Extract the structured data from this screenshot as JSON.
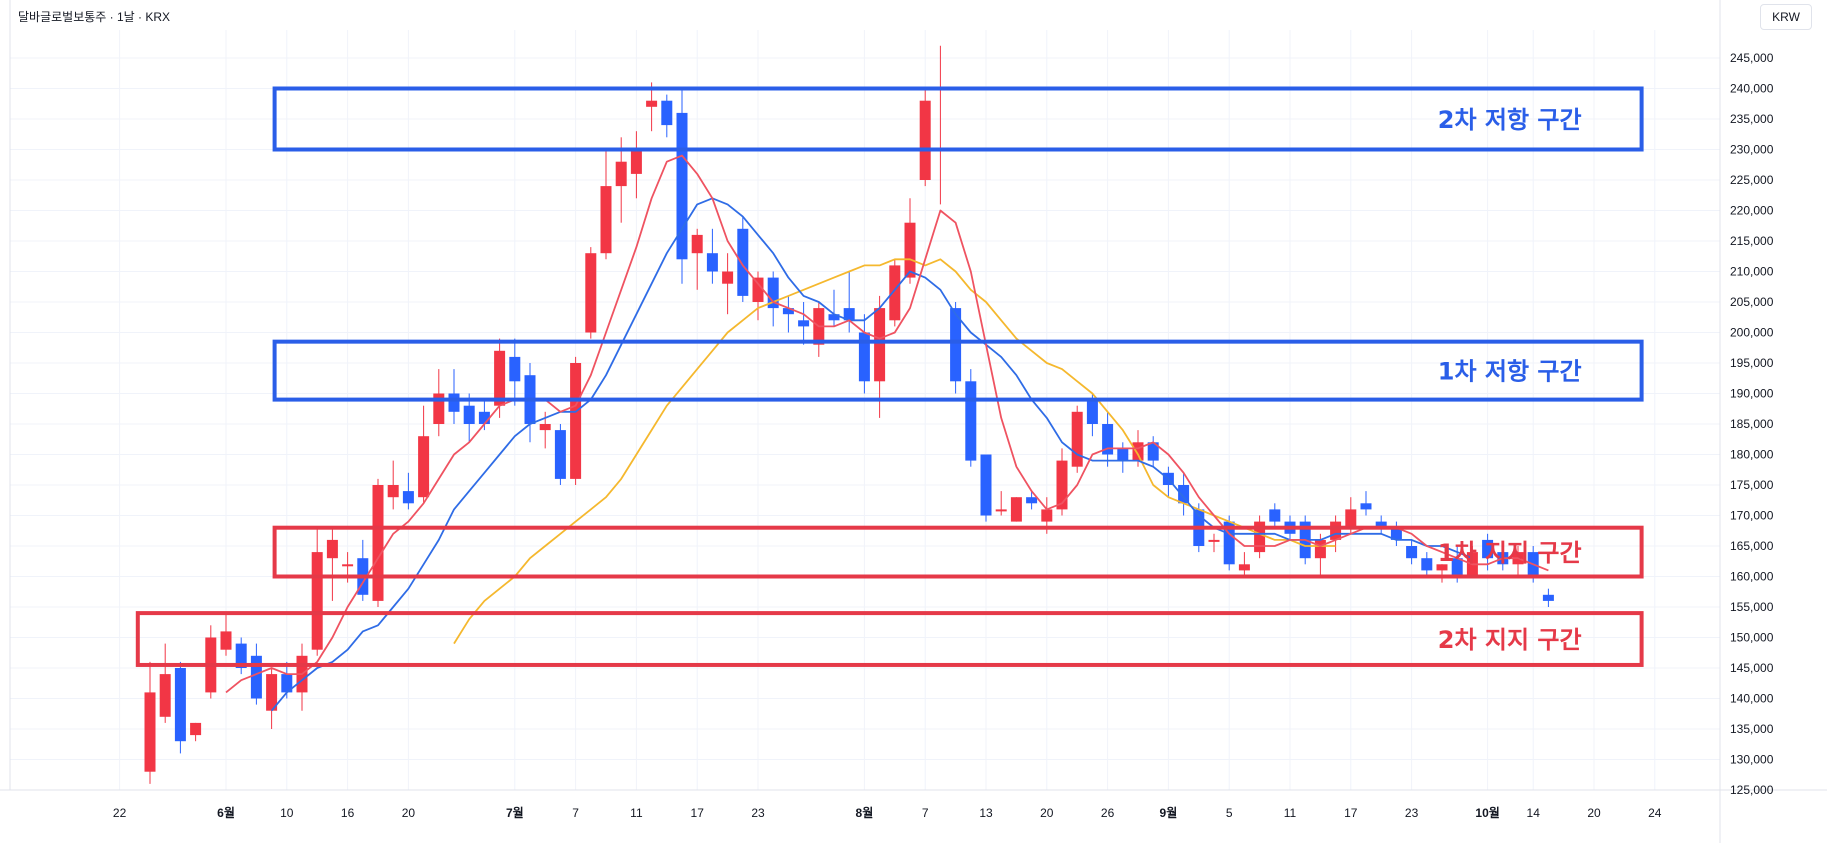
{
  "header": {
    "title": "달바글로벌보통주 · 1날 · KRX",
    "currency": "KRW"
  },
  "colors": {
    "up": "#f23645",
    "down": "#2962ff",
    "ma_short": "#ef5361",
    "ma_mid": "#2f6ce6",
    "ma_long": "#f5b82e",
    "resistance": "#2a5ee8",
    "support": "#e53948"
  },
  "chart_data": {
    "type": "candlestick",
    "title": "",
    "ylim": [
      122000,
      248000
    ],
    "y_ticks": [
      125000,
      130000,
      135000,
      140000,
      145000,
      150000,
      155000,
      160000,
      165000,
      170000,
      175000,
      180000,
      185000,
      190000,
      195000,
      200000,
      205000,
      210000,
      215000,
      220000,
      225000,
      230000,
      235000,
      240000,
      245000
    ],
    "y_tick_labels": [
      "125,000",
      "130,000",
      "135,000",
      "140,000",
      "145,000",
      "150,000",
      "155,000",
      "160,000",
      "165,000",
      "170,000",
      "175,000",
      "180,000",
      "185,000",
      "190,000",
      "195,000",
      "200,000",
      "205,000",
      "210,000",
      "215,000",
      "220,000",
      "225,000",
      "230,000",
      "235,000",
      "240,000",
      "245,000"
    ],
    "x_ticks": [
      {
        "label": "22",
        "index": -2,
        "bold": false
      },
      {
        "label": "6월",
        "index": 5,
        "bold": true
      },
      {
        "label": "10",
        "index": 9,
        "bold": false
      },
      {
        "label": "16",
        "index": 13,
        "bold": false
      },
      {
        "label": "20",
        "index": 17,
        "bold": false
      },
      {
        "label": "7월",
        "index": 24,
        "bold": true
      },
      {
        "label": "7",
        "index": 28,
        "bold": false
      },
      {
        "label": "11",
        "index": 32,
        "bold": false
      },
      {
        "label": "17",
        "index": 36,
        "bold": false
      },
      {
        "label": "23",
        "index": 40,
        "bold": false
      },
      {
        "label": "8월",
        "index": 47,
        "bold": true
      },
      {
        "label": "7",
        "index": 51,
        "bold": false
      },
      {
        "label": "13",
        "index": 55,
        "bold": false
      },
      {
        "label": "20",
        "index": 59,
        "bold": false
      },
      {
        "label": "26",
        "index": 63,
        "bold": false
      },
      {
        "label": "9월",
        "index": 67,
        "bold": true
      },
      {
        "label": "5",
        "index": 71,
        "bold": false
      },
      {
        "label": "11",
        "index": 75,
        "bold": false
      },
      {
        "label": "17",
        "index": 79,
        "bold": false
      },
      {
        "label": "23",
        "index": 83,
        "bold": false
      },
      {
        "label": "10월",
        "index": 88,
        "bold": true
      },
      {
        "label": "14",
        "index": 91,
        "bold": false
      },
      {
        "label": "20",
        "index": 95,
        "bold": false
      },
      {
        "label": "24",
        "index": 99,
        "bold": false
      }
    ],
    "candles": [
      {
        "o": 128000,
        "h": 146000,
        "l": 126000,
        "c": 141000
      },
      {
        "o": 137000,
        "h": 149000,
        "l": 136000,
        "c": 144000
      },
      {
        "o": 145000,
        "h": 146000,
        "l": 131000,
        "c": 133000
      },
      {
        "o": 134000,
        "h": 136000,
        "l": 133000,
        "c": 136000
      },
      {
        "o": 141000,
        "h": 152000,
        "l": 140000,
        "c": 150000
      },
      {
        "o": 148000,
        "h": 154000,
        "l": 147000,
        "c": 151000
      },
      {
        "o": 149000,
        "h": 150000,
        "l": 144000,
        "c": 145000
      },
      {
        "o": 147000,
        "h": 149000,
        "l": 139000,
        "c": 140000
      },
      {
        "o": 138000,
        "h": 145000,
        "l": 135000,
        "c": 144000
      },
      {
        "o": 144000,
        "h": 146000,
        "l": 140000,
        "c": 141000
      },
      {
        "o": 141000,
        "h": 149000,
        "l": 138000,
        "c": 147000
      },
      {
        "o": 148000,
        "h": 168000,
        "l": 147000,
        "c": 164000
      },
      {
        "o": 163000,
        "h": 168000,
        "l": 156000,
        "c": 166000
      },
      {
        "o": 162000,
        "h": 164000,
        "l": 159000,
        "c": 162000
      },
      {
        "o": 163000,
        "h": 166000,
        "l": 156000,
        "c": 157000
      },
      {
        "o": 156000,
        "h": 176000,
        "l": 155000,
        "c": 175000
      },
      {
        "o": 173000,
        "h": 179000,
        "l": 171000,
        "c": 175000
      },
      {
        "o": 174000,
        "h": 177000,
        "l": 171000,
        "c": 172000
      },
      {
        "o": 173000,
        "h": 188000,
        "l": 172000,
        "c": 183000
      },
      {
        "o": 185000,
        "h": 194000,
        "l": 183000,
        "c": 190000
      },
      {
        "o": 190000,
        "h": 194000,
        "l": 185000,
        "c": 187000
      },
      {
        "o": 188000,
        "h": 190000,
        "l": 182000,
        "c": 185000
      },
      {
        "o": 187000,
        "h": 189000,
        "l": 184000,
        "c": 185000
      },
      {
        "o": 188000,
        "h": 199000,
        "l": 186000,
        "c": 197000
      },
      {
        "o": 196000,
        "h": 199000,
        "l": 188000,
        "c": 192000
      },
      {
        "o": 193000,
        "h": 195000,
        "l": 182000,
        "c": 185000
      },
      {
        "o": 184000,
        "h": 187000,
        "l": 181000,
        "c": 185000
      },
      {
        "o": 184000,
        "h": 185000,
        "l": 175000,
        "c": 176000
      },
      {
        "o": 176000,
        "h": 196000,
        "l": 175000,
        "c": 195000
      },
      {
        "o": 200000,
        "h": 214000,
        "l": 199000,
        "c": 213000
      },
      {
        "o": 213000,
        "h": 230000,
        "l": 212000,
        "c": 224000
      },
      {
        "o": 224000,
        "h": 232000,
        "l": 218000,
        "c": 228000
      },
      {
        "o": 226000,
        "h": 233000,
        "l": 222000,
        "c": 230000
      },
      {
        "o": 237000,
        "h": 241000,
        "l": 233000,
        "c": 238000
      },
      {
        "o": 238000,
        "h": 239000,
        "l": 232000,
        "c": 234000
      },
      {
        "o": 236000,
        "h": 240000,
        "l": 208000,
        "c": 212000
      },
      {
        "o": 213000,
        "h": 217000,
        "l": 207000,
        "c": 216000
      },
      {
        "o": 213000,
        "h": 217000,
        "l": 208000,
        "c": 210000
      },
      {
        "o": 208000,
        "h": 213000,
        "l": 203000,
        "c": 210000
      },
      {
        "o": 217000,
        "h": 219000,
        "l": 205000,
        "c": 206000
      },
      {
        "o": 205000,
        "h": 210000,
        "l": 202000,
        "c": 209000
      },
      {
        "o": 209000,
        "h": 210000,
        "l": 201000,
        "c": 204000
      },
      {
        "o": 204000,
        "h": 206000,
        "l": 200000,
        "c": 203000
      },
      {
        "o": 202000,
        "h": 205000,
        "l": 198000,
        "c": 201000
      },
      {
        "o": 198000,
        "h": 205000,
        "l": 196000,
        "c": 204000
      },
      {
        "o": 203000,
        "h": 207000,
        "l": 201000,
        "c": 202000
      },
      {
        "o": 204000,
        "h": 210000,
        "l": 200000,
        "c": 202000
      },
      {
        "o": 200000,
        "h": 203000,
        "l": 190000,
        "c": 192000
      },
      {
        "o": 192000,
        "h": 206000,
        "l": 186000,
        "c": 204000
      },
      {
        "o": 202000,
        "h": 212000,
        "l": 201000,
        "c": 211000
      },
      {
        "o": 209000,
        "h": 222000,
        "l": 208000,
        "c": 218000
      },
      {
        "o": 225000,
        "h": 240000,
        "l": 224000,
        "c": 238000
      },
      {
        "o": 240000,
        "h": 247000,
        "l": 221000,
        "c": 240000
      },
      {
        "o": 204000,
        "h": 205000,
        "l": 190000,
        "c": 192000
      },
      {
        "o": 192000,
        "h": 194000,
        "l": 178000,
        "c": 179000
      },
      {
        "o": 180000,
        "h": 180000,
        "l": 169000,
        "c": 170000
      },
      {
        "o": 171000,
        "h": 174000,
        "l": 170000,
        "c": 171000
      },
      {
        "o": 169000,
        "h": 173000,
        "l": 169000,
        "c": 173000
      },
      {
        "o": 173000,
        "h": 174000,
        "l": 171000,
        "c": 172000
      },
      {
        "o": 169000,
        "h": 173000,
        "l": 167000,
        "c": 171000
      },
      {
        "o": 171000,
        "h": 181000,
        "l": 170000,
        "c": 179000
      },
      {
        "o": 178000,
        "h": 188000,
        "l": 177000,
        "c": 187000
      },
      {
        "o": 189000,
        "h": 190000,
        "l": 183000,
        "c": 185000
      },
      {
        "o": 185000,
        "h": 187000,
        "l": 178000,
        "c": 180000
      },
      {
        "o": 181000,
        "h": 182000,
        "l": 177000,
        "c": 179000
      },
      {
        "o": 179000,
        "h": 184000,
        "l": 178000,
        "c": 182000
      },
      {
        "o": 182000,
        "h": 183000,
        "l": 178000,
        "c": 179000
      },
      {
        "o": 177000,
        "h": 178000,
        "l": 173000,
        "c": 175000
      },
      {
        "o": 175000,
        "h": 177000,
        "l": 170000,
        "c": 172000
      },
      {
        "o": 171000,
        "h": 172000,
        "l": 164000,
        "c": 165000
      },
      {
        "o": 166000,
        "h": 167000,
        "l": 164000,
        "c": 166000
      },
      {
        "o": 169000,
        "h": 170000,
        "l": 161000,
        "c": 162000
      },
      {
        "o": 161000,
        "h": 164000,
        "l": 160000,
        "c": 162000
      },
      {
        "o": 164000,
        "h": 170000,
        "l": 163000,
        "c": 169000
      },
      {
        "o": 171000,
        "h": 172000,
        "l": 168000,
        "c": 169000
      },
      {
        "o": 169000,
        "h": 170000,
        "l": 166000,
        "c": 167000
      },
      {
        "o": 169000,
        "h": 170000,
        "l": 162000,
        "c": 163000
      },
      {
        "o": 163000,
        "h": 167000,
        "l": 160000,
        "c": 166000
      },
      {
        "o": 166000,
        "h": 170000,
        "l": 164000,
        "c": 169000
      },
      {
        "o": 168000,
        "h": 173000,
        "l": 167000,
        "c": 171000
      },
      {
        "o": 172000,
        "h": 174000,
        "l": 170000,
        "c": 171000
      },
      {
        "o": 169000,
        "h": 170000,
        "l": 167000,
        "c": 168000
      },
      {
        "o": 168000,
        "h": 169000,
        "l": 165000,
        "c": 166000
      },
      {
        "o": 165000,
        "h": 166000,
        "l": 162000,
        "c": 163000
      },
      {
        "o": 163000,
        "h": 164000,
        "l": 160000,
        "c": 161000
      },
      {
        "o": 161000,
        "h": 162000,
        "l": 159000,
        "c": 162000
      },
      {
        "o": 163000,
        "h": 165000,
        "l": 159000,
        "c": 160000
      },
      {
        "o": 160000,
        "h": 165000,
        "l": 160000,
        "c": 164000
      },
      {
        "o": 166000,
        "h": 167000,
        "l": 161000,
        "c": 163000
      },
      {
        "o": 164000,
        "h": 165000,
        "l": 161000,
        "c": 162000
      },
      {
        "o": 162000,
        "h": 165000,
        "l": 160000,
        "c": 164000
      },
      {
        "o": 164000,
        "h": 165000,
        "l": 159000,
        "c": 160000
      },
      {
        "o": 157000,
        "h": 158000,
        "l": 155000,
        "c": 156000
      }
    ],
    "ma_short": [
      null,
      null,
      null,
      null,
      null,
      141000,
      143000,
      144000,
      145000,
      144000,
      144000,
      146000,
      150000,
      155000,
      159000,
      163000,
      167000,
      169000,
      172000,
      176000,
      180000,
      182000,
      185000,
      188000,
      189000,
      189000,
      189000,
      187000,
      188000,
      193000,
      200000,
      207000,
      214000,
      222000,
      228000,
      229000,
      226000,
      222000,
      215000,
      211000,
      208000,
      205000,
      204000,
      203000,
      201000,
      201000,
      202000,
      200000,
      199000,
      200000,
      204000,
      212000,
      220000,
      218000,
      210000,
      198000,
      186000,
      178000,
      174000,
      171000,
      172000,
      175000,
      180000,
      181000,
      181000,
      181000,
      182000,
      180000,
      177000,
      173000,
      170000,
      167000,
      165000,
      165000,
      165000,
      166000,
      166000,
      165000,
      166000,
      167000,
      168000,
      168000,
      168000,
      167000,
      165000,
      164000,
      163000,
      162000,
      162000,
      163000,
      163000,
      162000,
      161000
    ],
    "ma_mid": [
      null,
      null,
      null,
      null,
      null,
      null,
      null,
      null,
      138000,
      141000,
      143000,
      145000,
      146000,
      148000,
      151000,
      152000,
      155000,
      158000,
      162000,
      166000,
      171000,
      174000,
      177000,
      180000,
      183000,
      185000,
      186000,
      187000,
      187000,
      189000,
      193000,
      198000,
      203000,
      208000,
      213000,
      217000,
      221000,
      222000,
      221000,
      219000,
      216000,
      213000,
      209000,
      206000,
      205000,
      203000,
      202000,
      202000,
      204000,
      207000,
      210000,
      209000,
      207000,
      203000,
      200000,
      198000,
      196000,
      193000,
      189000,
      186000,
      182000,
      180000,
      179000,
      179000,
      179000,
      179000,
      178000,
      176000,
      173000,
      170000,
      168000,
      167000,
      167000,
      167000,
      167000,
      166000,
      166000,
      166000,
      167000,
      167000,
      167000,
      167000,
      166000,
      166000,
      165000,
      165000,
      164000,
      163000
    ],
    "ma_long": [
      null,
      null,
      null,
      null,
      null,
      null,
      null,
      null,
      null,
      null,
      null,
      null,
      null,
      null,
      null,
      null,
      null,
      null,
      null,
      null,
      149000,
      153000,
      156000,
      158000,
      160000,
      163000,
      165000,
      167000,
      169000,
      171000,
      173000,
      176000,
      180000,
      184000,
      188000,
      191000,
      194000,
      197000,
      200000,
      202000,
      204000,
      205000,
      206000,
      207000,
      208000,
      209000,
      210000,
      211000,
      211000,
      212000,
      212000,
      211000,
      212000,
      210000,
      207000,
      205000,
      202000,
      199000,
      197000,
      195000,
      194000,
      192000,
      190000,
      187000,
      184000,
      180000,
      175000,
      173000,
      172000,
      171000,
      170000,
      169000,
      168000,
      167000,
      166000,
      166000,
      165000,
      165000,
      165000
    ],
    "zones": [
      {
        "id": "resistance-2",
        "label": "2차 저항 구간",
        "kind": "resistance",
        "low": 230000,
        "high": 240000,
        "from_index": 8,
        "to_index": 98
      },
      {
        "id": "resistance-1",
        "label": "1차 저항 구간",
        "kind": "resistance",
        "low": 189000,
        "high": 198500,
        "from_index": 8,
        "to_index": 98
      },
      {
        "id": "support-1",
        "label": "1차 지지 구간",
        "kind": "support",
        "low": 160000,
        "high": 168000,
        "from_index": 8,
        "to_index": 98
      },
      {
        "id": "support-2",
        "label": "2차 지지 구간",
        "kind": "support",
        "low": 145500,
        "high": 154000,
        "from_index": -1,
        "to_index": 98
      }
    ]
  }
}
